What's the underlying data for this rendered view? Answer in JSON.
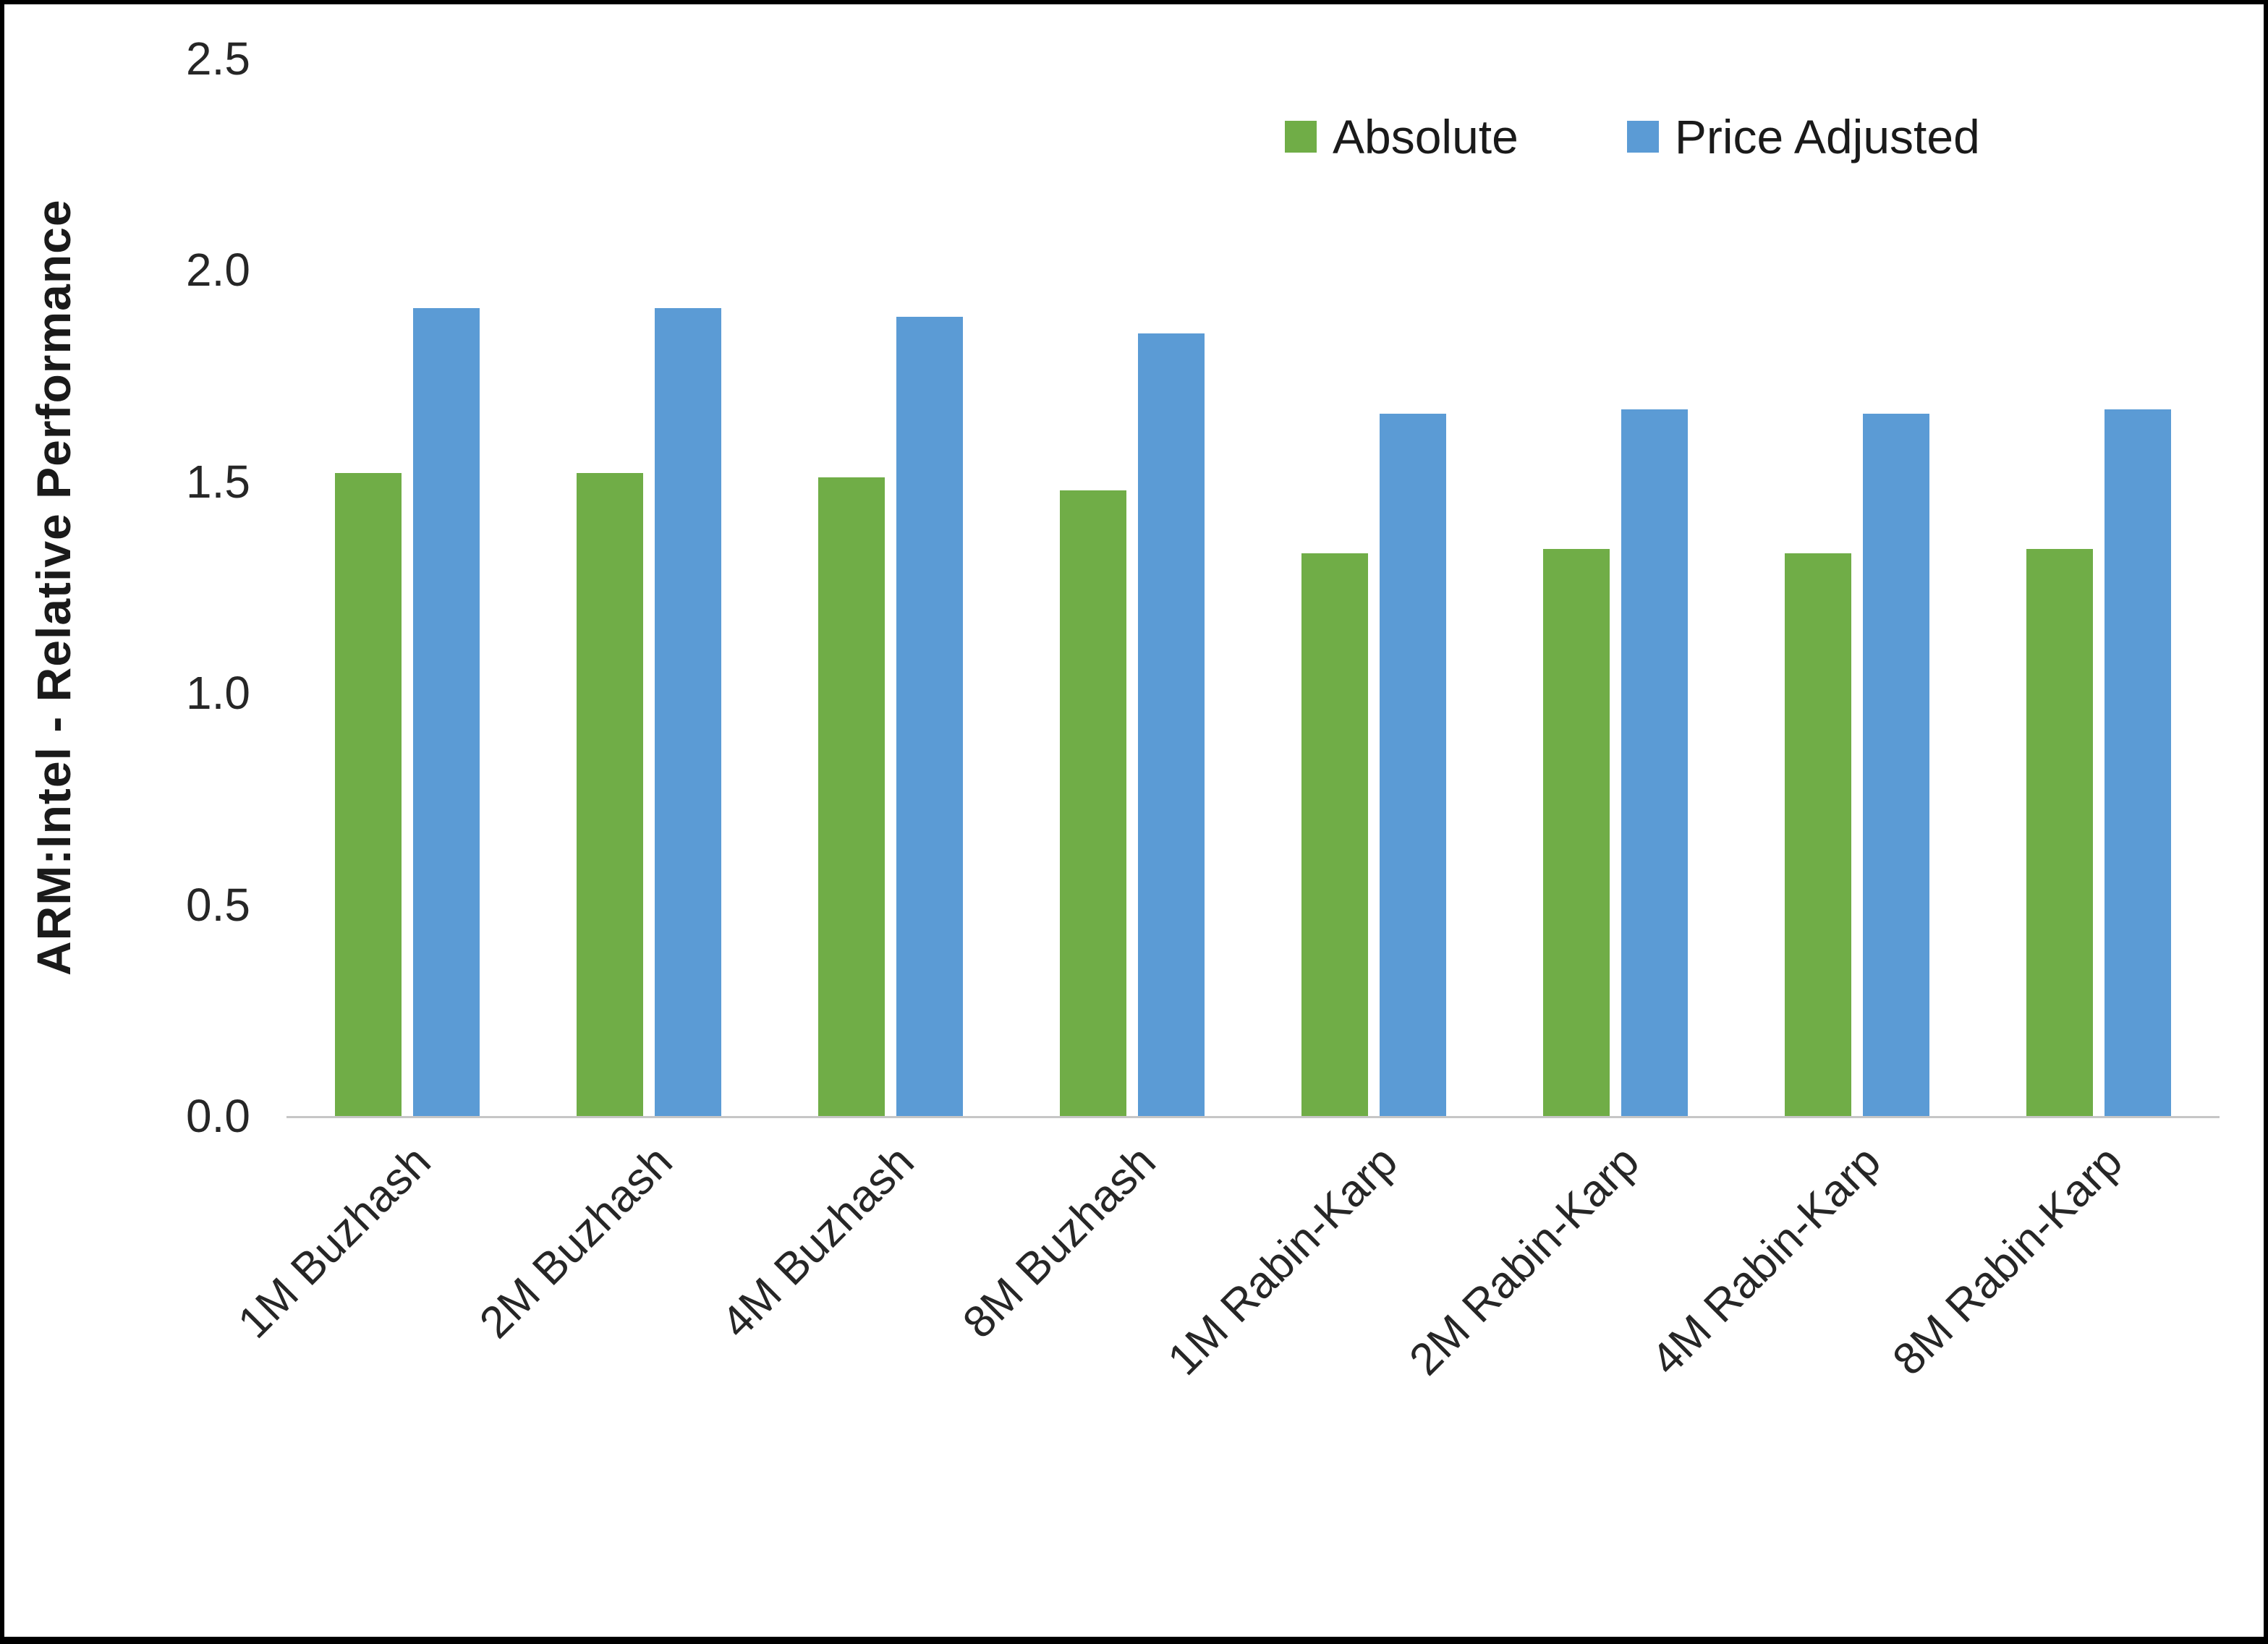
{
  "chart_data": {
    "type": "bar",
    "title": "",
    "xlabel": "",
    "ylabel": "ARM:Intel - Relative Performance",
    "ylim": [
      0,
      2.5
    ],
    "yticks": [
      0,
      0.5,
      1,
      1.5,
      2,
      2.5
    ],
    "ytick_decimals": 1,
    "grid": false,
    "legend_position": "top-right",
    "categories": [
      "1M Buzhash",
      "2M Buzhash",
      "4M Buzhash",
      "8M Buzhash",
      "1M Rabin-Karp",
      "2M Rabin-Karp",
      "4M Rabin-Karp",
      "8M Rabin-Karp"
    ],
    "series": [
      {
        "name": "Absolute",
        "color": "#70AD47",
        "values": [
          1.52,
          1.52,
          1.51,
          1.48,
          1.33,
          1.34,
          1.33,
          1.34
        ]
      },
      {
        "name": "Price Adjusted",
        "color": "#5B9BD5",
        "values": [
          1.91,
          1.91,
          1.89,
          1.85,
          1.66,
          1.67,
          1.66,
          1.67
        ]
      }
    ]
  },
  "colors": {
    "axis_line": "#c6c6c6",
    "text": "#262626",
    "frame_border": "#000000"
  }
}
